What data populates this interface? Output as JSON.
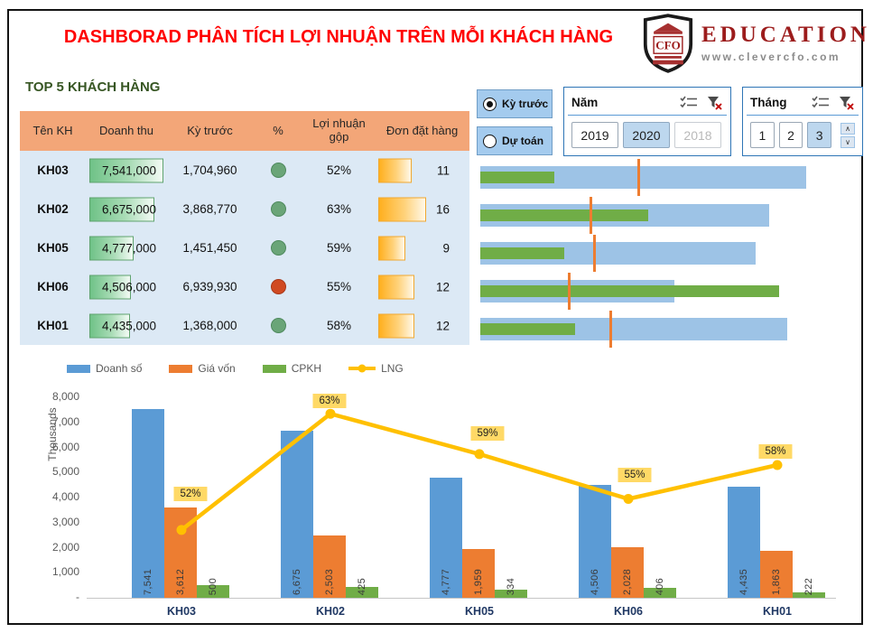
{
  "colors": {
    "title_red": "#FF0000",
    "brand_red": "#9C1C1C",
    "section_green": "#375623",
    "table_header_bg": "#F3A678",
    "table_body_bg": "#DCE9F5",
    "databar_green": "#6FC287",
    "databar_orange": "#FFAF1E",
    "status_green": "#6AA578",
    "status_red": "#D04A22",
    "slicer_selected_bg": "#BDD7EE",
    "bullet_blue": "#9DC3E6",
    "bar_blue": "#5B9BD5",
    "bar_orange": "#ED7D31",
    "bar_green": "#70AD47",
    "line_yellow": "#FFC000",
    "label_bg": "#FFD966",
    "xlabel_blue": "#203864"
  },
  "header": {
    "title": "DASHBORAD PHÂN TÍCH LỢI NHUẬN TRÊN MỖI KHÁCH HÀNG",
    "logo": {
      "shield_text": "CFO",
      "brand": "EDUCATION",
      "url": "www.clevercfo.com"
    }
  },
  "table": {
    "section_title": "TOP 5 KHÁCH HÀNG",
    "columns": [
      "Tên KH",
      "Doanh thu",
      "Kỳ trước",
      "%",
      "Lợi nhuận gộp",
      "Đơn đặt hàng"
    ],
    "rows": [
      {
        "name": "KH03",
        "doanh_thu": "7,541,000",
        "doanh_bar_pct": 100,
        "ky_truoc": "1,704,960",
        "status": "green",
        "loi_nhuan_gop": "52%",
        "don_dat_hang": "11",
        "don_bar_pct": 69
      },
      {
        "name": "KH02",
        "doanh_thu": "6,675,000",
        "doanh_bar_pct": 88.5,
        "ky_truoc": "3,868,770",
        "status": "green",
        "loi_nhuan_gop": "63%",
        "don_dat_hang": "16",
        "don_bar_pct": 100
      },
      {
        "name": "KH05",
        "doanh_thu": "4,777,000",
        "doanh_bar_pct": 63.3,
        "ky_truoc": "1,451,450",
        "status": "green",
        "loi_nhuan_gop": "59%",
        "don_dat_hang": "9",
        "don_bar_pct": 56
      },
      {
        "name": "KH06",
        "doanh_thu": "4,506,000",
        "doanh_bar_pct": 59.8,
        "ky_truoc": "6,939,930",
        "status": "red",
        "loi_nhuan_gop": "55%",
        "don_dat_hang": "12",
        "don_bar_pct": 75
      },
      {
        "name": "KH01",
        "doanh_thu": "4,435,000",
        "doanh_bar_pct": 58.8,
        "ky_truoc": "1,368,000",
        "status": "green",
        "loi_nhuan_gop": "58%",
        "don_dat_hang": "12",
        "don_bar_pct": 75
      }
    ]
  },
  "filters": {
    "radio": [
      {
        "label": "Kỳ trước",
        "selected": true
      },
      {
        "label": "Dự toán",
        "selected": false
      }
    ],
    "nam": {
      "title": "Năm",
      "items": [
        {
          "label": "2019",
          "state": "normal"
        },
        {
          "label": "2020",
          "state": "selected"
        },
        {
          "label": "2018",
          "state": "disabled"
        }
      ]
    },
    "thang": {
      "title": "Tháng",
      "items": [
        {
          "label": "1",
          "state": "normal"
        },
        {
          "label": "2",
          "state": "normal"
        },
        {
          "label": "3",
          "state": "selected"
        }
      ]
    }
  },
  "chart_data": [
    {
      "type": "bar",
      "subtype": "grouped-bars-with-line",
      "categories": [
        "KH03",
        "KH02",
        "KH05",
        "KH06",
        "KH01"
      ],
      "series": [
        {
          "name": "Doanh số",
          "type": "bar",
          "color": "#5B9BD5",
          "values": [
            7541,
            6675,
            4777,
            4506,
            4435
          ],
          "labels": [
            "7,541",
            "6,675",
            "4,777",
            "4,506",
            "4,435"
          ]
        },
        {
          "name": "Giá vốn",
          "type": "bar",
          "color": "#ED7D31",
          "values": [
            3612,
            2503,
            1959,
            2028,
            1863
          ],
          "labels": [
            "3,612",
            "2,503",
            "1,959",
            "2,028",
            "1,863"
          ]
        },
        {
          "name": "CPKH",
          "type": "bar",
          "color": "#70AD47",
          "values": [
            500,
            425,
            334,
            406,
            222
          ],
          "labels": [
            "500",
            "425",
            "334",
            "406",
            "222"
          ]
        },
        {
          "name": "LNG",
          "type": "line",
          "color": "#FFC000",
          "values_pct": [
            52,
            63,
            59,
            55,
            58
          ],
          "labels": [
            "52%",
            "63%",
            "59%",
            "55%",
            "58%"
          ],
          "primary_axis_equiv": [
            2706,
            7345,
            5735,
            3945,
            5297
          ],
          "label_dx": [
            10,
            -1,
            9,
            7,
            -2
          ],
          "label_dy": [
            -39,
            -13,
            -22,
            -26,
            -14
          ]
        }
      ],
      "ylabel": "Thousands",
      "ytick_labels": [
        "8,000",
        "7,000",
        "6,000",
        "5,000",
        "4,000",
        "3,000",
        "2,000",
        "1,000",
        "-"
      ],
      "ytick_values": [
        8000,
        7000,
        6000,
        5000,
        4000,
        3000,
        2000,
        1000,
        0
      ],
      "ylim": [
        0,
        8000
      ],
      "legend_position": "top-left",
      "grid": false
    },
    {
      "type": "bullet",
      "note": "per-customer bullet rows; fracs are fractions of row width (row axes are independently scaled)",
      "categories": [
        "KH03",
        "KH02",
        "KH05",
        "KH06",
        "KH01"
      ],
      "series": [
        {
          "name": "Doanh thu",
          "role": "bar-wide",
          "color": "#9DC3E6",
          "fracs": [
            0.995,
            0.881,
            0.84,
            0.592,
            0.937
          ]
        },
        {
          "name": "Kỳ trước",
          "role": "bar-narrow",
          "color": "#70AD47",
          "fracs": [
            0.226,
            0.512,
            0.256,
            0.912,
            0.289
          ]
        },
        {
          "name": "Giá vốn",
          "role": "tick-marker",
          "color": "#ED7D31",
          "fracs": [
            0.479,
            0.333,
            0.344,
            0.267,
            0.394
          ]
        }
      ]
    }
  ]
}
